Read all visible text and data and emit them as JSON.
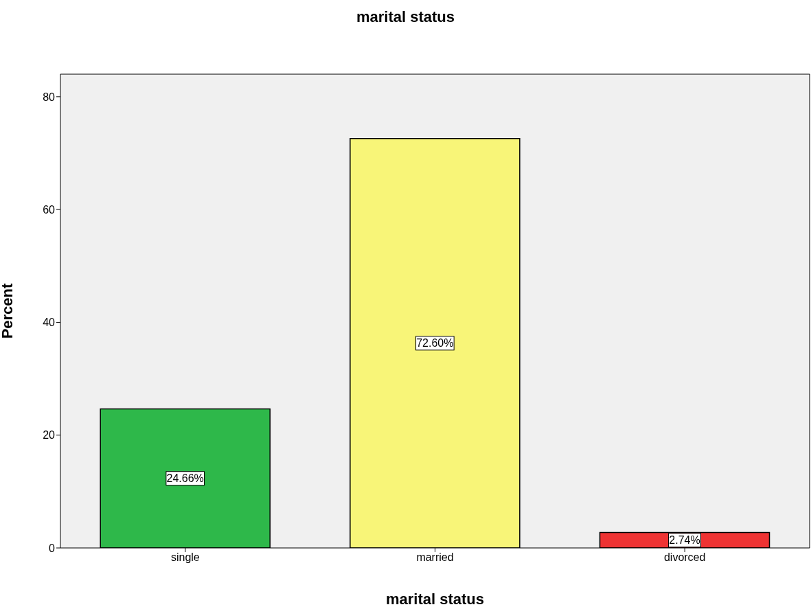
{
  "chart_data": {
    "type": "bar",
    "title": "marital status",
    "xlabel": "marital status",
    "ylabel": "Percent",
    "categories": [
      "single",
      "married",
      "divorced"
    ],
    "values": [
      24.66,
      72.6,
      2.74
    ],
    "value_labels": [
      "24.66%",
      "72.60%",
      "2.74%"
    ],
    "colors": [
      "#2eb84a",
      "#f8f578",
      "#ee3333"
    ],
    "ylim": [
      0,
      84
    ],
    "yticks": [
      0,
      20,
      40,
      60,
      80
    ],
    "grid": false
  }
}
